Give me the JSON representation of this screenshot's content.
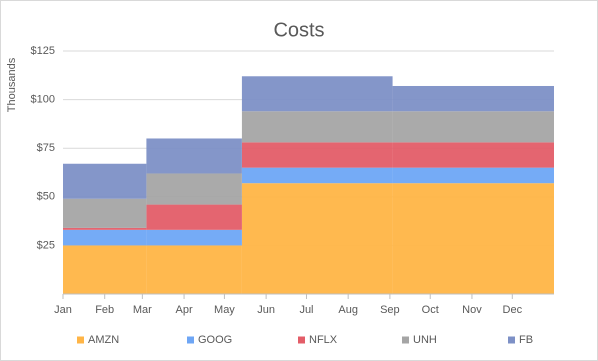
{
  "chart_data": {
    "type": "step-area",
    "title": "Costs",
    "y_label": "Thousands",
    "x": [
      0,
      62,
      133,
      245
    ],
    "xlim": [
      0,
      365
    ],
    "xticks": [
      {
        "value": 0,
        "label": "Jan"
      },
      {
        "value": 31,
        "label": "Feb"
      },
      {
        "value": 59,
        "label": "Mar"
      },
      {
        "value": 90,
        "label": "Apr"
      },
      {
        "value": 120,
        "label": "May"
      },
      {
        "value": 151,
        "label": "Jun"
      },
      {
        "value": 181,
        "label": "Jul"
      },
      {
        "value": 212,
        "label": "Aug"
      },
      {
        "value": 243,
        "label": "Sep"
      },
      {
        "value": 273,
        "label": "Oct"
      },
      {
        "value": 304,
        "label": "Nov"
      },
      {
        "value": 334,
        "label": "Dec"
      }
    ],
    "ylim": [
      0,
      125
    ],
    "yticks": [
      {
        "value": 25,
        "label": "$25"
      },
      {
        "value": 50,
        "label": "$50"
      },
      {
        "value": 75,
        "label": "$75"
      },
      {
        "value": 100,
        "label": "$100"
      },
      {
        "value": 125,
        "label": "$125"
      }
    ],
    "grid": true,
    "legend": "bottom",
    "series": [
      {
        "name": "AMZN",
        "color": "#ffb546",
        "values": [
          25,
          25,
          57,
          57
        ]
      },
      {
        "name": "GOOG",
        "color": "#6ea6f5",
        "values": [
          8,
          8,
          8,
          8
        ]
      },
      {
        "name": "NFLX",
        "color": "#e35d68",
        "values": [
          1,
          13,
          13,
          13
        ]
      },
      {
        "name": "UNH",
        "color": "#a5a5a5",
        "values": [
          15,
          16,
          16,
          16
        ]
      },
      {
        "name": "FB",
        "color": "#7d90c6",
        "values": [
          18,
          18,
          18,
          13
        ]
      }
    ]
  }
}
